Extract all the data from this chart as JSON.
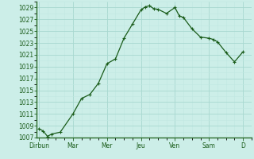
{
  "background_color": "#cceee8",
  "grid_color_major": "#a8d8d0",
  "grid_color_minor": "#c0e8e2",
  "line_color": "#1a5c1a",
  "marker_color": "#1a5c1a",
  "ylim": [
    1007,
    1030
  ],
  "ytick_min": 1007,
  "ytick_max": 1029,
  "ytick_step": 2,
  "x_labels": [
    "Dirbun",
    "Mar",
    "Mer",
    "Jeu",
    "Ven",
    "Sam",
    "D"
  ],
  "x_tick_positions": [
    0,
    8,
    16,
    24,
    32,
    40,
    48
  ],
  "xlim": [
    -0.5,
    50
  ],
  "data_x": [
    0,
    1,
    2,
    3,
    5,
    8,
    10,
    12,
    14,
    16,
    18,
    20,
    22,
    24,
    25,
    26,
    27,
    28,
    30,
    32,
    33,
    34,
    36,
    38,
    40,
    41,
    42,
    44,
    46,
    48
  ],
  "data_y": [
    1008.5,
    1008.1,
    1007.2,
    1007.6,
    1007.9,
    1011.0,
    1013.6,
    1014.3,
    1016.2,
    1019.5,
    1020.3,
    1023.8,
    1026.2,
    1028.6,
    1029.1,
    1029.3,
    1028.8,
    1028.7,
    1028.0,
    1029.0,
    1027.6,
    1027.3,
    1025.4,
    1024.0,
    1023.8,
    1023.6,
    1023.2,
    1021.4,
    1019.8,
    1021.5
  ],
  "label_fontsize": 5.5,
  "label_color": "#1a5c1a",
  "spine_color": "#2a6c2a",
  "linewidth": 0.9,
  "markersize": 2.2
}
